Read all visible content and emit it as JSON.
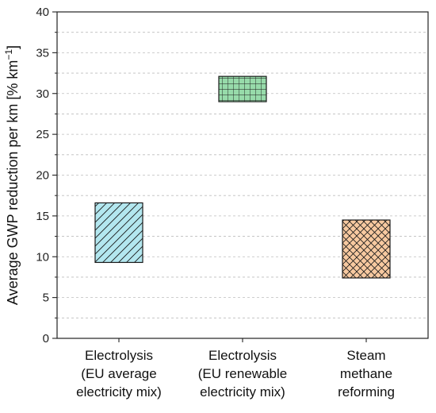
{
  "chart_data": {
    "type": "bar",
    "categories": [
      [
        "Electrolysis",
        "(EU average",
        "electricity mix)"
      ],
      [
        "Electrolysis",
        "(EU renewable",
        "electricity mix)"
      ],
      [
        "Steam",
        "methane",
        "reforming"
      ]
    ],
    "ranges": [
      {
        "low": 9.3,
        "high": 16.6,
        "fill": "#b3e7ef",
        "pattern": "diagonal"
      },
      {
        "low": 29.0,
        "high": 32.1,
        "fill": "#97dbaa",
        "pattern": "grid"
      },
      {
        "low": 7.4,
        "high": 14.5,
        "fill": "#f7c9a0",
        "pattern": "crosshatch"
      }
    ],
    "ylabel": "Average GWP reduction per km [% km",
    "ylabel_sup": "−1",
    "ylabel_close": "]",
    "ylim": [
      0,
      40
    ],
    "yticks": [
      "0",
      "5",
      "10",
      "15",
      "20",
      "25",
      "30",
      "35",
      "40"
    ],
    "grid": "horizontal-dashed"
  }
}
